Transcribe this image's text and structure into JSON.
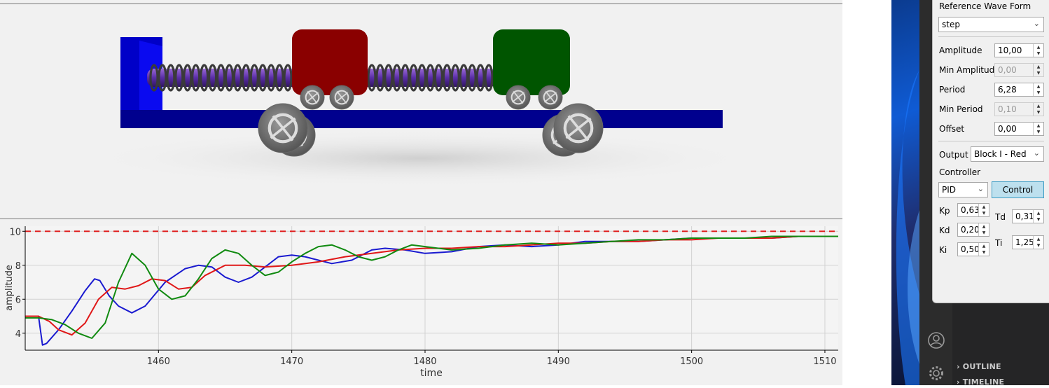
{
  "panel": {
    "reference_wave_label": "Reference Wave Form",
    "wave_value": "step",
    "amplitude_label": "Amplitude",
    "amplitude_value": "10,00",
    "min_amplitude_label": "Min Amplitude",
    "min_amplitude_value": "0,00",
    "period_label": "Period",
    "period_value": "6,28",
    "min_period_label": "Min Period",
    "min_period_value": "0,10",
    "offset_label": "Offset",
    "offset_value": "0,00",
    "output_label": "Output",
    "output_value": "Block I - Red",
    "controller_label": "Controller",
    "controller_value": "PID",
    "control_button": "Control",
    "kp_label": "Kp",
    "kp_value": "0,63",
    "kd_label": "Kd",
    "kd_value": "0,20",
    "ki_label": "Ki",
    "ki_value": "0,50",
    "td_label": "Td",
    "td_value": "0,31",
    "ti_label": "Ti",
    "ti_value": "1,25"
  },
  "explorer": {
    "outline_label": "OUTLINE",
    "timeline_label": "TIMELINE"
  },
  "icons": [
    "account-icon",
    "settings-gear-icon",
    "chevron-right-icon"
  ],
  "chart_data": {
    "type": "line",
    "xlabel": "time",
    "ylabel": "amplitude",
    "xlim": [
      1450,
      1511
    ],
    "ylim": [
      3.0,
      10.3
    ],
    "xticks": [
      "1460",
      "1470",
      "1480",
      "1490",
      "1500",
      "1510"
    ],
    "yticks": [
      "4",
      "6",
      "8",
      "10"
    ],
    "grid": true,
    "reference": {
      "value": 10,
      "color": "#e02020",
      "style": "dashed"
    },
    "series": [
      {
        "color": "#1a1ad0",
        "x": [
          1450,
          1451,
          1451.3,
          1451.6,
          1452.5,
          1453.5,
          1454.5,
          1455.2,
          1455.6,
          1456.3,
          1457.0,
          1458.0,
          1459.0,
          1460.5,
          1462.0,
          1463.0,
          1464.0,
          1465.0,
          1466.0,
          1467.0,
          1468.0,
          1469.0,
          1470.0,
          1471.0,
          1472.0,
          1473.0,
          1474.5,
          1476.0,
          1477.0,
          1478.5,
          1480.0,
          1482.0,
          1484.0,
          1486.0,
          1488.0,
          1490.0,
          1492.0,
          1494.0,
          1496.0,
          1498.0,
          1500.0,
          1502.0,
          1504.0,
          1506.0,
          1508.0,
          1511.0
        ],
        "y": [
          5.0,
          5.0,
          3.3,
          3.4,
          4.2,
          5.3,
          6.5,
          7.2,
          7.1,
          6.2,
          5.6,
          5.2,
          5.6,
          7.0,
          7.8,
          8.0,
          7.9,
          7.3,
          7.0,
          7.3,
          7.9,
          8.5,
          8.6,
          8.5,
          8.3,
          8.1,
          8.3,
          8.9,
          9.0,
          8.9,
          8.7,
          8.8,
          9.1,
          9.2,
          9.1,
          9.2,
          9.4,
          9.4,
          9.4,
          9.5,
          9.6,
          9.6,
          9.6,
          9.6,
          9.7,
          9.7
        ]
      },
      {
        "color": "#e01818",
        "x": [
          1450,
          1451,
          1451.8,
          1452.5,
          1453.5,
          1454.5,
          1455.5,
          1456.5,
          1457.5,
          1458.5,
          1459.5,
          1460.5,
          1461.5,
          1462.5,
          1463.5,
          1465.0,
          1466.5,
          1468.0,
          1470.0,
          1472.0,
          1474.0,
          1476.0,
          1478.0,
          1480.0,
          1482.0,
          1484.0,
          1486.0,
          1488.0,
          1490.0,
          1492.0,
          1494.0,
          1496.0,
          1498.0,
          1500.0,
          1502.0,
          1504.0,
          1506.0,
          1508.0,
          1511.0
        ],
        "y": [
          5.0,
          5.0,
          4.7,
          4.2,
          3.9,
          4.6,
          6.0,
          6.7,
          6.6,
          6.8,
          7.2,
          7.1,
          6.6,
          6.7,
          7.4,
          8.0,
          8.0,
          7.9,
          8.0,
          8.2,
          8.5,
          8.7,
          8.9,
          9.0,
          9.0,
          9.1,
          9.1,
          9.2,
          9.3,
          9.3,
          9.4,
          9.4,
          9.5,
          9.5,
          9.6,
          9.6,
          9.6,
          9.7,
          9.7
        ]
      },
      {
        "color": "#108a10",
        "x": [
          1450,
          1451,
          1452,
          1453,
          1454,
          1455,
          1456,
          1457,
          1458,
          1459,
          1460,
          1461,
          1462,
          1463,
          1464,
          1465,
          1466,
          1467,
          1468,
          1469,
          1470,
          1471,
          1472,
          1473,
          1474,
          1475,
          1476,
          1477,
          1478,
          1479,
          1480,
          1482,
          1484,
          1486,
          1488,
          1490,
          1492,
          1494,
          1496,
          1498,
          1500,
          1502,
          1504,
          1506,
          1508,
          1511
        ],
        "y": [
          4.9,
          4.9,
          4.8,
          4.5,
          4.0,
          3.7,
          4.6,
          7.0,
          8.7,
          8.0,
          6.6,
          6.0,
          6.2,
          7.2,
          8.4,
          8.9,
          8.7,
          8.0,
          7.4,
          7.6,
          8.2,
          8.7,
          9.1,
          9.2,
          8.9,
          8.5,
          8.3,
          8.5,
          8.9,
          9.2,
          9.1,
          8.9,
          9.0,
          9.2,
          9.3,
          9.2,
          9.3,
          9.4,
          9.5,
          9.5,
          9.6,
          9.6,
          9.6,
          9.7,
          9.7,
          9.7
        ]
      }
    ]
  }
}
